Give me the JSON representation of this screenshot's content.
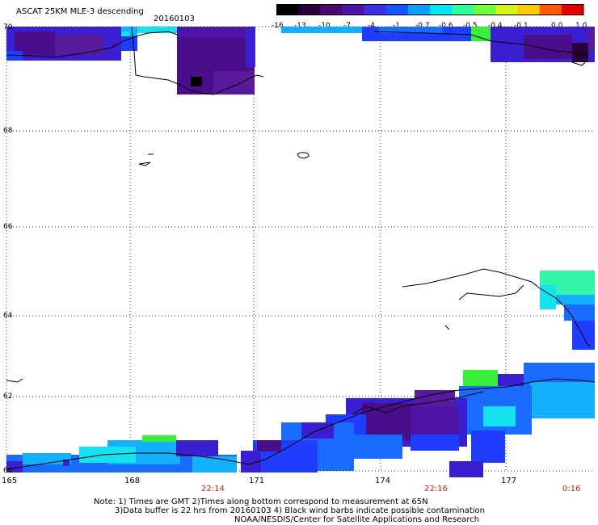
{
  "header": {
    "title": "ASCAT 25KM MLE-3 descending",
    "date": "20160103"
  },
  "colorbar": {
    "labels": [
      "-16",
      "-13",
      "-10",
      "-7",
      "-4",
      "-1",
      "-0.7",
      "-0.6",
      "-0.5",
      "-0.4",
      "-0.1",
      "0.0",
      "1.0"
    ],
    "colors": [
      "#000000",
      "#2b0038",
      "#4b0a6e",
      "#4d14a6",
      "#3b2fe0",
      "#1555ff",
      "#0aa0ff",
      "#00e6f0",
      "#2dff9b",
      "#6eff3c",
      "#d6f01a",
      "#ffc800",
      "#ff5a00",
      "#e80000"
    ]
  },
  "map": {
    "lat_labels": [
      "70",
      "68",
      "66",
      "64",
      "62",
      "60"
    ],
    "lon_labels": [
      "165",
      "168",
      "171",
      "174",
      "177"
    ],
    "time_labels": [
      "22:14",
      "22:16",
      "0:16"
    ],
    "colors": {
      "violet": "#4a0e8a",
      "blue_violet": "#3a1fd0",
      "blue": "#1f3dff",
      "med_blue": "#1a6cff",
      "sky": "#12b0ff",
      "cyan": "#14e2ee",
      "aqua_green": "#33f5a8",
      "green": "#38f03a"
    }
  },
  "notes": {
    "line1": "Note: 1) Times are GMT 2)Times along bottom correspond to measurement at 65N",
    "line2": "3)Data buffer is 22 hrs from 20160103 4) Black wind barbs indicate possible contamination",
    "line3": "NOAA/NESDIS/Center for Satellite Applications and Research"
  }
}
